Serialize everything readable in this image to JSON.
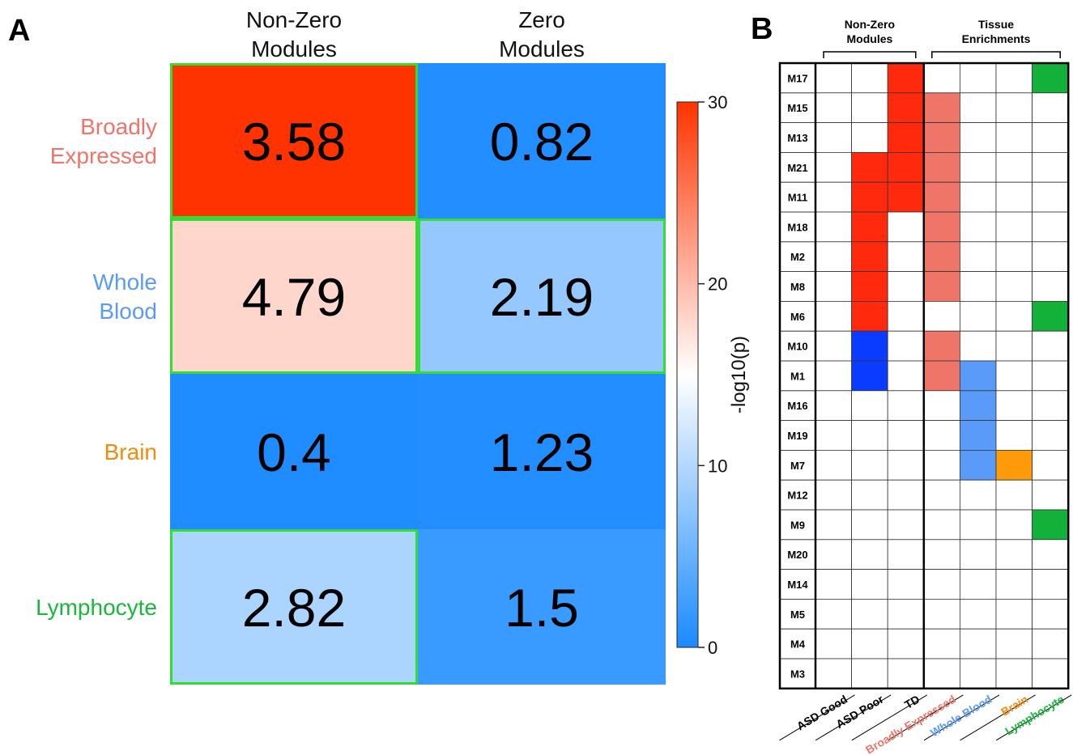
{
  "panels": {
    "a_label": "A",
    "b_label": "B"
  },
  "colors": {
    "low_blue": "#1A8AFF",
    "mid_white": "#FFFFFF",
    "high_red": "#FF3300",
    "highlight_green": "#33DD33",
    "broadly_expressed": "#F07569",
    "whole_blood": "#5A9BFA",
    "brain": "#F58A0B",
    "lymphocyte": "#18B83A",
    "asd_poor_red": "#FF2A0D",
    "asd_poor_blue": "#0A3CFF",
    "td_red": "#FF2A0D",
    "tissue_green": "#13B13A",
    "brain_orange": "#FF9A0A"
  },
  "chart_data": [
    {
      "type": "heatmap",
      "columns": [
        "Non-Zero\nModules",
        "Zero\nModules"
      ],
      "column_lines": [
        [
          "Non-Zero",
          "Modules"
        ],
        [
          "Zero",
          "Modules"
        ]
      ],
      "rows": [
        {
          "label_lines": [
            "Broadly",
            "Expressed"
          ],
          "color_key": "broadly_expressed"
        },
        {
          "label_lines": [
            "Whole",
            "Blood"
          ],
          "color_key": "whole_blood"
        },
        {
          "label_lines": [
            "Brain"
          ],
          "color_key": "brain"
        },
        {
          "label_lines": [
            "Lymphocyte"
          ],
          "color_key": "lymphocyte"
        }
      ],
      "values": [
        [
          "3.58",
          "0.82"
        ],
        [
          "4.79",
          "2.19"
        ],
        [
          "0.4",
          "1.23"
        ],
        [
          "2.82",
          "1.5"
        ]
      ],
      "log10p": [
        [
          30,
          0.5
        ],
        [
          18,
          8
        ],
        [
          0.3,
          0.5
        ],
        [
          9.5,
          2
        ]
      ],
      "highlighted": [
        [
          true,
          false
        ],
        [
          true,
          true
        ],
        [
          false,
          false
        ],
        [
          true,
          false
        ]
      ],
      "colorbar": {
        "label": "-log10(p)",
        "range": [
          0,
          30
        ],
        "ticks": [
          "0",
          "10",
          "20",
          "30"
        ]
      }
    },
    {
      "type": "table",
      "group_headers": [
        [
          "Non-Zero",
          "Modules"
        ],
        [
          "Tissue",
          "Enrichments"
        ]
      ],
      "modules": [
        "M17",
        "M15",
        "M13",
        "M21",
        "M11",
        "M18",
        "M2",
        "M8",
        "M6",
        "M10",
        "M1",
        "M16",
        "M19",
        "M7",
        "M12",
        "M9",
        "M20",
        "M14",
        "M5",
        "M4",
        "M3"
      ],
      "columns": [
        {
          "label": "ASD Good",
          "color_key": ""
        },
        {
          "label": "ASD Poor",
          "color_key": ""
        },
        {
          "label": "TD",
          "color_key": ""
        },
        {
          "label": "Broadly Expressed",
          "color_key": "broadly_expressed"
        },
        {
          "label": "Whole Blood",
          "color_key": "whole_blood"
        },
        {
          "label": "Brain",
          "color_key": "brain"
        },
        {
          "label": "Lymphocyte",
          "color_key": "lymphocyte"
        }
      ],
      "cells": {
        "ASD Poor": {
          "M21": "red",
          "M11": "red",
          "M18": "red",
          "M2": "red",
          "M8": "red",
          "M6": "red",
          "M10": "blue",
          "M1": "blue"
        },
        "TD": {
          "M17": "red",
          "M15": "red",
          "M13": "red",
          "M21": "red",
          "M11": "red"
        },
        "Broadly Expressed": {
          "M15": "on",
          "M13": "on",
          "M21": "on",
          "M11": "on",
          "M18": "on",
          "M2": "on",
          "M8": "on",
          "M10": "on",
          "M1": "on"
        },
        "Whole Blood": {
          "M1": "on",
          "M16": "on",
          "M19": "on",
          "M7": "on"
        },
        "Brain": {
          "M7": "on"
        },
        "Lymphocyte": {
          "M17": "on",
          "M6": "on",
          "M9": "on"
        }
      }
    }
  ]
}
